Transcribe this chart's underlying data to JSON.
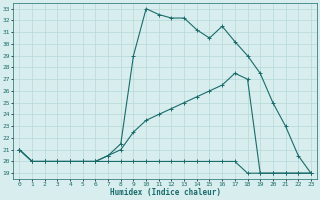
{
  "xlabel": "Humidex (Indice chaleur)",
  "bg_color": "#d8eeee",
  "grid_color": "#b8d8d8",
  "line_color": "#1a6b6b",
  "xlim": [
    -0.5,
    23.5
  ],
  "ylim": [
    18.5,
    33.5
  ],
  "xticks": [
    0,
    1,
    2,
    3,
    4,
    5,
    6,
    7,
    8,
    9,
    10,
    11,
    12,
    13,
    14,
    15,
    16,
    17,
    18,
    19,
    20,
    21,
    22,
    23
  ],
  "yticks": [
    19,
    20,
    21,
    22,
    23,
    24,
    25,
    26,
    27,
    28,
    29,
    30,
    31,
    32,
    33
  ],
  "line1_x": [
    0,
    1,
    2,
    3,
    4,
    5,
    6,
    7,
    8,
    9,
    10,
    11,
    12,
    13,
    14,
    15,
    16,
    17,
    18,
    19,
    20,
    21,
    22,
    23
  ],
  "line1_y": [
    21,
    20,
    20,
    20,
    20,
    20,
    20,
    20.5,
    21.5,
    29,
    33,
    32.5,
    32.2,
    32.2,
    31.2,
    30.5,
    31.5,
    30.2,
    29.0,
    27.5,
    25.0,
    23.0,
    20.5,
    19.0
  ],
  "line2_x": [
    0,
    1,
    2,
    3,
    4,
    5,
    6,
    7,
    8,
    9,
    10,
    11,
    12,
    13,
    14,
    15,
    16,
    17,
    18,
    19,
    20,
    21,
    22,
    23
  ],
  "line2_y": [
    21,
    20,
    20,
    20,
    20,
    20,
    20,
    20.5,
    21.0,
    22.5,
    23.5,
    24.0,
    24.5,
    25.0,
    25.5,
    26.0,
    26.5,
    27.5,
    27.0,
    19.0,
    19.0,
    19.0,
    19.0,
    19.0
  ],
  "line3_x": [
    0,
    1,
    2,
    3,
    4,
    5,
    6,
    7,
    8,
    9,
    10,
    11,
    12,
    13,
    14,
    15,
    16,
    17,
    18,
    19,
    20,
    21,
    22,
    23
  ],
  "line3_y": [
    21,
    20,
    20,
    20,
    20,
    20,
    20,
    20.0,
    20.0,
    20.0,
    20.0,
    20.0,
    20.0,
    20.0,
    20.0,
    20.0,
    20.0,
    20.0,
    19.0,
    19.0,
    19.0,
    19.0,
    19.0,
    19.0
  ]
}
